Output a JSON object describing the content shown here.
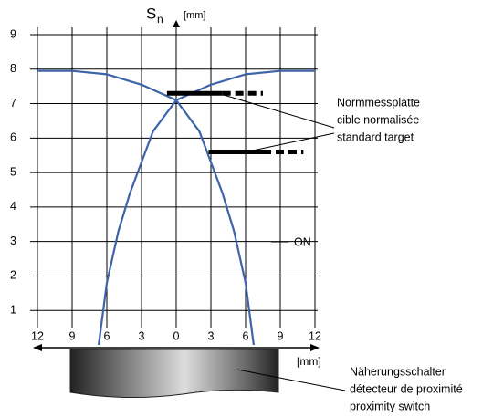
{
  "chart_data": {
    "type": "line",
    "y_label": "S",
    "y_label_sub": "n",
    "y_unit": "[mm]",
    "x_unit": "[mm]",
    "xlim": [
      -12,
      12
    ],
    "ylim": [
      0,
      9
    ],
    "xticks": [
      {
        "value": -12,
        "label": "12"
      },
      {
        "value": -9,
        "label": "9"
      },
      {
        "value": -6,
        "label": "6"
      },
      {
        "value": -3,
        "label": "3"
      },
      0,
      3,
      6,
      9,
      12
    ],
    "yticks": [
      1,
      2,
      3,
      4,
      5,
      6,
      7,
      8,
      9
    ],
    "grid": true,
    "series": [
      {
        "color": "#3d63a8",
        "x": [
          -12,
          -9,
          -6,
          -3,
          0,
          2,
          4,
          5,
          6,
          6.7
        ],
        "values": [
          7.95,
          7.95,
          7.85,
          7.55,
          7.1,
          6.2,
          4.4,
          3.3,
          1.8,
          0
        ]
      },
      {
        "color": "#3d63a8",
        "x": [
          -6.7,
          -6,
          -5,
          -4,
          -2,
          0,
          3,
          6,
          9,
          12
        ],
        "values": [
          0,
          1.8,
          3.3,
          4.4,
          6.2,
          7.1,
          7.55,
          7.85,
          7.95,
          7.95
        ]
      }
    ],
    "targets": [
      {
        "y": 7.3,
        "solid": [
          -0.8,
          4
        ],
        "dashed": [
          4,
          7.5
        ]
      },
      {
        "y": 5.6,
        "solid": [
          2.8,
          7.5
        ],
        "dashed": [
          7.5,
          11
        ]
      }
    ],
    "legend_label": "ON",
    "target_label": [
      "Normmessplatte",
      "cible normalisée",
      "standard target"
    ],
    "sensor_label": [
      "Näherungsschalter",
      "détecteur de proximité",
      "proximity switch"
    ]
  }
}
